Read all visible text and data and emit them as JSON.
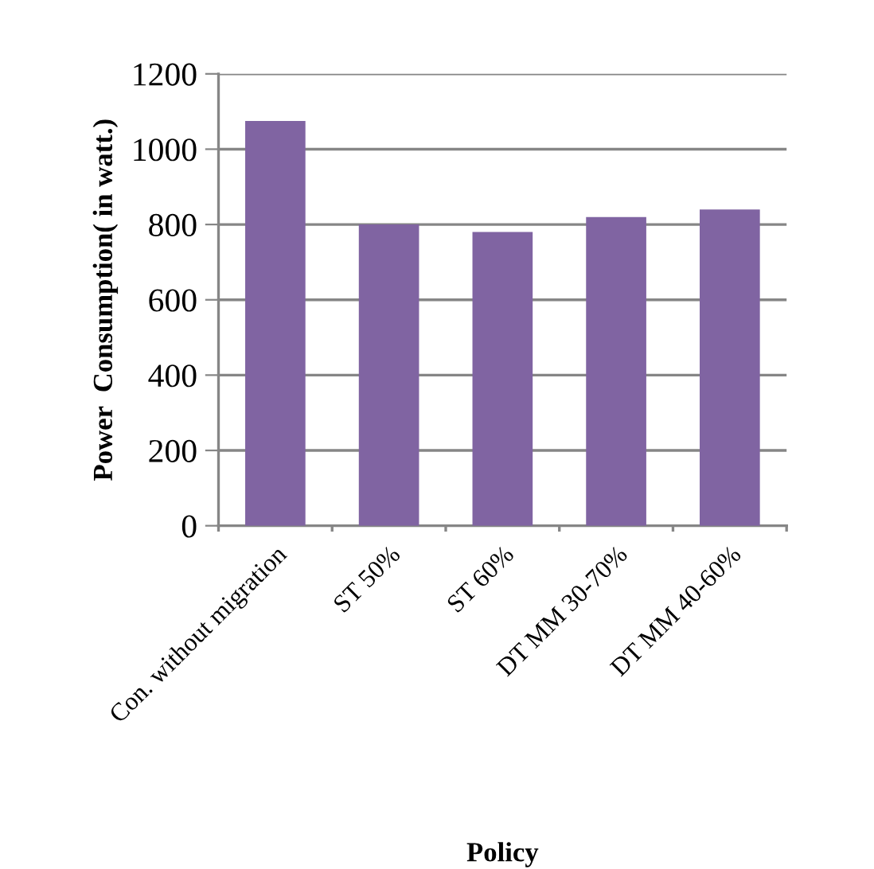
{
  "chart_data": {
    "type": "bar",
    "xlabel": "Policy",
    "ylabel": "Power  Consumption( in watt.)",
    "categories": [
      "Con. without migration",
      "ST 50%",
      "ST 60%",
      "DT MM 30-70%",
      "DT MM 40-60%"
    ],
    "values": [
      1075,
      800,
      780,
      820,
      840
    ],
    "color": "#8064a2",
    "ylim": [
      0,
      1200
    ],
    "yticks": [
      0,
      200,
      400,
      600,
      800,
      1000,
      1200
    ],
    "grid": "y"
  }
}
